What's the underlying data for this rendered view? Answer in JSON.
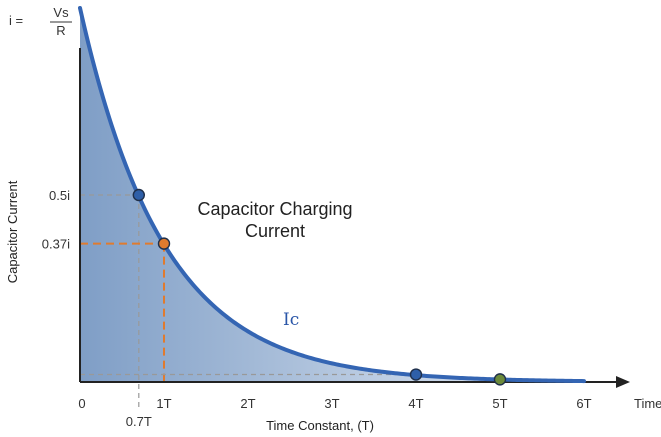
{
  "chart_data": {
    "type": "line",
    "title_lines": [
      "Capacitor Charging",
      "Current"
    ],
    "xlabel": "Time Constant, (T)",
    "ylabel": "Capacitor Current",
    "x_axis_end_label": "Time, t",
    "y_top_label": {
      "prefix": "i =",
      "numerator": "Vs",
      "denominator": "R"
    },
    "curve_label": {
      "text": "Ic",
      "color": "#2a56a8"
    },
    "xlim": [
      0,
      6.5
    ],
    "ylim": [
      0,
      1
    ],
    "x_ticks": [
      {
        "value": 0,
        "label": "0",
        "color": "#333333"
      },
      {
        "value": 1,
        "label": "1T",
        "color": "#e07b2e"
      },
      {
        "value": 2,
        "label": "2T",
        "color": "#333333"
      },
      {
        "value": 3,
        "label": "3T",
        "color": "#333333"
      },
      {
        "value": 4,
        "label": "4T",
        "color": "#333333"
      },
      {
        "value": 5,
        "label": "5T",
        "color": "#6b8a3a"
      },
      {
        "value": 6,
        "label": "6T",
        "color": "#333333"
      }
    ],
    "extra_x_label": {
      "value": 0.7,
      "label": "0.7T",
      "color": "#333333"
    },
    "y_labels": [
      {
        "value": 0.5,
        "label": "0.5i",
        "color": "#333333"
      },
      {
        "value": 0.37,
        "label": "0.37i",
        "color": "#e07b2e"
      }
    ],
    "series": [
      {
        "function": "exp_decay",
        "time_constant": 1,
        "x_range": [
          0,
          6
        ],
        "color": "#3465b3"
      }
    ],
    "markers": [
      {
        "x": 0.7,
        "y": 0.5,
        "color": "#2e5fa8",
        "guide": "dashed",
        "guide_color": "#999999"
      },
      {
        "x": 1,
        "y": 0.37,
        "color": "#e07b2e",
        "guide": "dashed",
        "guide_color": "#e07b2e"
      },
      {
        "x": 4,
        "y": 0.02,
        "color": "#2e5fa8",
        "guide": "dashed",
        "guide_color": "#999999"
      },
      {
        "x": 5,
        "y": 0.007,
        "color": "#6b8a3a",
        "guide": "none",
        "guide_color": "#999999"
      }
    ],
    "fill": {
      "from": "#7f9ec6",
      "to": "#e6edf6"
    },
    "grid": false,
    "legend": "none"
  }
}
